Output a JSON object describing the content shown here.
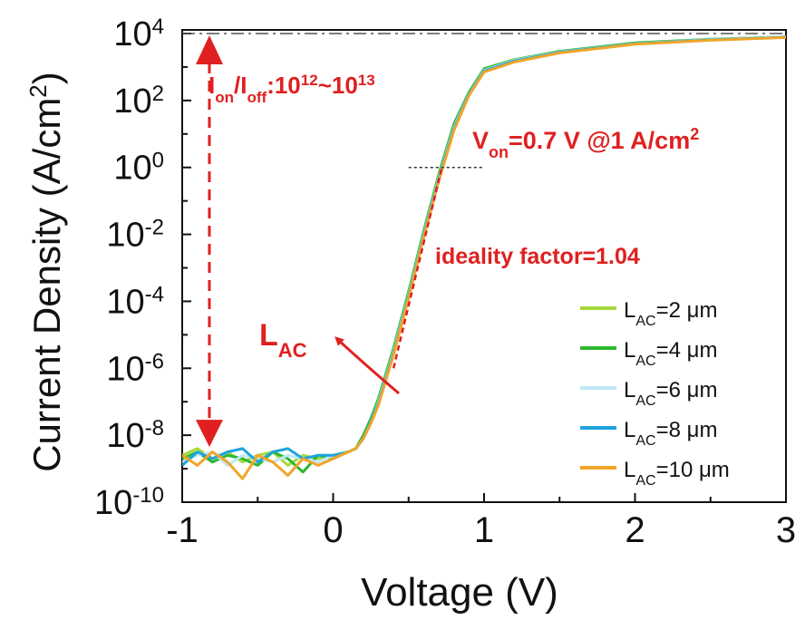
{
  "chart_data": {
    "type": "line",
    "title": "",
    "xlabel": "Voltage (V)",
    "ylabel_main": "Current Density (A/cm",
    "ylabel_sup": "2",
    "ylabel_tail": ")",
    "xlim": [
      -1,
      3
    ],
    "ylim_log10": [
      -10,
      4
    ],
    "x_ticks": [
      {
        "value": -1,
        "label": "-1"
      },
      {
        "value": 0,
        "label": "0"
      },
      {
        "value": 1,
        "label": "1"
      },
      {
        "value": 2,
        "label": "2"
      },
      {
        "value": 3,
        "label": "3"
      }
    ],
    "y_ticks": [
      {
        "exp": 4,
        "base": "10",
        "sup": "4"
      },
      {
        "exp": 2,
        "base": "10",
        "sup": "2"
      },
      {
        "exp": 0,
        "base": "10",
        "sup": "0"
      },
      {
        "exp": -2,
        "base": "10",
        "sup": "-2"
      },
      {
        "exp": -4,
        "base": "10",
        "sup": "-4"
      },
      {
        "exp": -6,
        "base": "10",
        "sup": "-6"
      },
      {
        "exp": -8,
        "base": "10",
        "sup": "-8"
      },
      {
        "exp": -10,
        "base": "10",
        "sup": "-10"
      }
    ],
    "series": [
      {
        "name_main": "L",
        "name_sub": "AC",
        "name_tail": "=2 μm",
        "color": "#a6d83c",
        "x": [
          -1,
          -0.9,
          -0.8,
          -0.7,
          -0.6,
          -0.5,
          -0.4,
          -0.3,
          -0.2,
          -0.1,
          0,
          0.1,
          0.15,
          0.2,
          0.25,
          0.3,
          0.4,
          0.5,
          0.6,
          0.7,
          0.8,
          0.9,
          1,
          1.2,
          1.5,
          2,
          2.5,
          3
        ],
        "log_y": [
          -8.6,
          -8.4,
          -8.7,
          -8.5,
          -8.8,
          -8.6,
          -8.5,
          -8.9,
          -8.6,
          -8.7,
          -8.6,
          -8.5,
          -8.4,
          -8.1,
          -7.6,
          -7.0,
          -5.5,
          -3.8,
          -2.0,
          -0.3,
          1.2,
          2.2,
          2.9,
          3.2,
          3.45,
          3.7,
          3.82,
          3.9
        ]
      },
      {
        "name_main": "L",
        "name_sub": "AC",
        "name_tail": "=4 μm",
        "color": "#2db830",
        "x": [
          -1,
          -0.9,
          -0.8,
          -0.7,
          -0.6,
          -0.5,
          -0.4,
          -0.3,
          -0.2,
          -0.1,
          0,
          0.1,
          0.15,
          0.2,
          0.25,
          0.3,
          0.4,
          0.5,
          0.6,
          0.7,
          0.8,
          0.9,
          1,
          1.2,
          1.5,
          2,
          2.5,
          3
        ],
        "log_y": [
          -8.7,
          -8.5,
          -8.8,
          -8.6,
          -8.7,
          -8.9,
          -8.5,
          -8.7,
          -9.1,
          -8.6,
          -8.7,
          -8.5,
          -8.4,
          -8.0,
          -7.5,
          -6.9,
          -5.4,
          -3.7,
          -1.9,
          -0.2,
          1.3,
          2.25,
          2.95,
          3.22,
          3.47,
          3.72,
          3.83,
          3.9
        ]
      },
      {
        "name_main": "L",
        "name_sub": "AC",
        "name_tail": "=6 μm",
        "color": "#bfe8f5",
        "x": [
          -1,
          -0.9,
          -0.8,
          -0.7,
          -0.6,
          -0.5,
          -0.4,
          -0.3,
          -0.2,
          -0.1,
          0,
          0.1,
          0.15,
          0.2,
          0.25,
          0.3,
          0.4,
          0.5,
          0.6,
          0.7,
          0.8,
          0.9,
          1,
          1.2,
          1.5,
          2,
          2.5,
          3
        ],
        "log_y": [
          -8.8,
          -8.6,
          -8.5,
          -8.9,
          -8.6,
          -8.7,
          -8.8,
          -8.6,
          -8.7,
          -8.8,
          -8.6,
          -8.5,
          -8.4,
          -8.1,
          -7.6,
          -7.0,
          -5.5,
          -3.8,
          -2.0,
          -0.3,
          1.2,
          2.2,
          2.9,
          3.2,
          3.45,
          3.7,
          3.82,
          3.9
        ]
      },
      {
        "name_main": "L",
        "name_sub": "AC",
        "name_tail": "=8 μm",
        "color": "#1fa3dc",
        "x": [
          -1,
          -0.9,
          -0.8,
          -0.7,
          -0.6,
          -0.5,
          -0.4,
          -0.3,
          -0.2,
          -0.1,
          0,
          0.1,
          0.15,
          0.2,
          0.25,
          0.3,
          0.4,
          0.5,
          0.6,
          0.7,
          0.8,
          0.9,
          1,
          1.2,
          1.5,
          2,
          2.5,
          3
        ],
        "log_y": [
          -8.9,
          -8.5,
          -8.7,
          -8.5,
          -8.4,
          -8.8,
          -8.5,
          -8.4,
          -8.7,
          -8.6,
          -8.6,
          -8.5,
          -8.4,
          -8.1,
          -7.6,
          -7.05,
          -5.55,
          -3.85,
          -2.05,
          -0.35,
          1.15,
          2.18,
          2.88,
          3.18,
          3.44,
          3.69,
          3.81,
          3.89
        ]
      },
      {
        "name_main": "L",
        "name_sub": "AC",
        "name_tail": "=10 μm",
        "color": "#f0a52a",
        "x": [
          -1,
          -0.9,
          -0.8,
          -0.7,
          -0.6,
          -0.5,
          -0.4,
          -0.3,
          -0.2,
          -0.1,
          0,
          0.1,
          0.15,
          0.2,
          0.25,
          0.3,
          0.4,
          0.5,
          0.6,
          0.7,
          0.8,
          0.9,
          1,
          1.2,
          1.5,
          2,
          2.5,
          3
        ],
        "log_y": [
          -8.6,
          -8.9,
          -8.5,
          -8.8,
          -9.3,
          -8.6,
          -8.8,
          -9.2,
          -8.7,
          -8.9,
          -8.7,
          -8.5,
          -8.4,
          -8.1,
          -7.65,
          -7.1,
          -5.6,
          -3.9,
          -2.1,
          -0.4,
          1.1,
          2.15,
          2.85,
          3.15,
          3.42,
          3.68,
          3.8,
          3.88
        ]
      }
    ],
    "reference_line": {
      "log_y": 4,
      "style": "dash-dot"
    },
    "annotations": {
      "ion_ioff": {
        "I1": "I",
        "sub1": "on",
        "slash": "/I",
        "sub2": "off",
        "mid": ":10",
        "sup1": "12",
        "tilde": "~10",
        "sup2": "13"
      },
      "von": {
        "V": "V",
        "sub": "on",
        "mid": "=0.7 V @1 A/cm",
        "sup": "2"
      },
      "ideality": "ideality factor=1.04",
      "lac": {
        "L": "L",
        "sub": "AC"
      },
      "von_value_V": 0.7,
      "von_current_log": 0,
      "ideality_line": {
        "x": [
          0.4,
          0.72
        ],
        "log_y": [
          -6.0,
          0.0
        ]
      }
    },
    "legend_placement": "bottom-right",
    "annotation_color": "#e02020"
  }
}
